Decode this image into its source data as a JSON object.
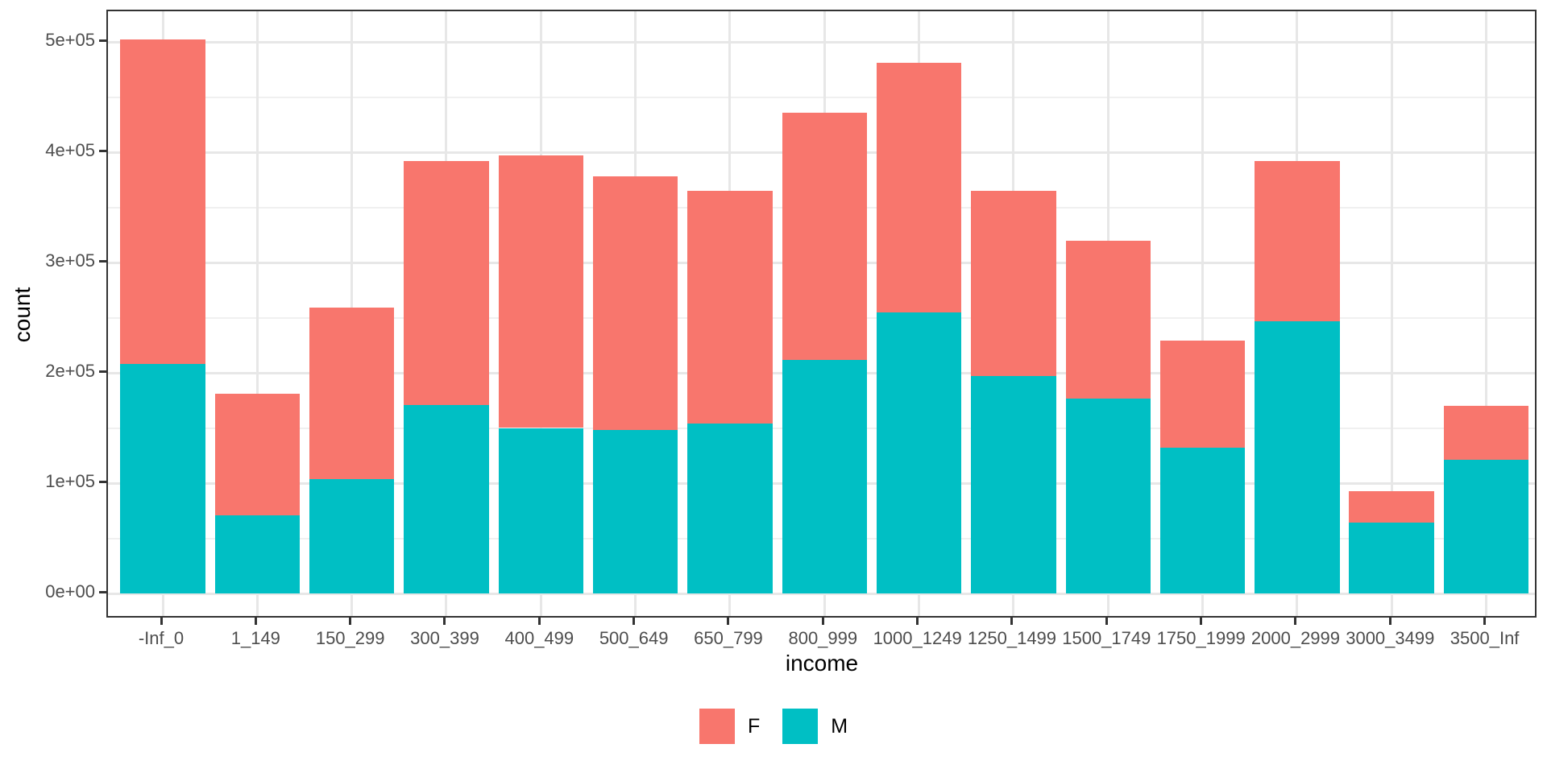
{
  "chart_data": {
    "type": "bar",
    "variant": "stacked",
    "title": "",
    "xlabel": "income",
    "ylabel": "count",
    "categories": [
      "-Inf_0",
      "1_149",
      "150_299",
      "300_399",
      "400_499",
      "500_649",
      "650_799",
      "800_999",
      "1000_1249",
      "1250_1499",
      "1500_1749",
      "1750_1999",
      "2000_2999",
      "3000_3499",
      "3500_Inf"
    ],
    "series": [
      {
        "name": "F",
        "color": "#F8766D",
        "values": [
          294000,
          110000,
          155000,
          221000,
          247000,
          230000,
          211000,
          224000,
          226000,
          168000,
          143000,
          97000,
          145000,
          29000,
          49000
        ]
      },
      {
        "name": "M",
        "color": "#00BFC4",
        "values": [
          208000,
          71000,
          104000,
          171000,
          150000,
          148000,
          154000,
          212000,
          255000,
          197000,
          177000,
          132000,
          247000,
          64000,
          121000
        ]
      }
    ],
    "stack_totals": [
      502000,
      181000,
      259000,
      392000,
      397000,
      378000,
      365000,
      436000,
      481000,
      365000,
      320000,
      229000,
      392000,
      93000,
      170000
    ],
    "stack_order_bottom_to_top": [
      "M",
      "F"
    ],
    "y_ticks": [
      {
        "label": "0e+00",
        "value": 0
      },
      {
        "label": "1e+05",
        "value": 100000
      },
      {
        "label": "2e+05",
        "value": 200000
      },
      {
        "label": "3e+05",
        "value": 300000
      },
      {
        "label": "4e+05",
        "value": 400000
      },
      {
        "label": "5e+05",
        "value": 500000
      }
    ],
    "y_minor_ticks": [
      50000,
      150000,
      250000,
      350000,
      450000
    ],
    "ylim": [
      0,
      527000
    ],
    "grid": "major+minor",
    "legend_position": "bottom",
    "legend": [
      "F",
      "M"
    ],
    "colors": {
      "grid_major": "#E7E7E7",
      "grid_minor": "#F0F0F0",
      "panel_border": "#333333",
      "tick": "#333333",
      "tick_label": "#4D4D4D",
      "axis_title": "#000000",
      "background": "#FFFFFF"
    }
  }
}
